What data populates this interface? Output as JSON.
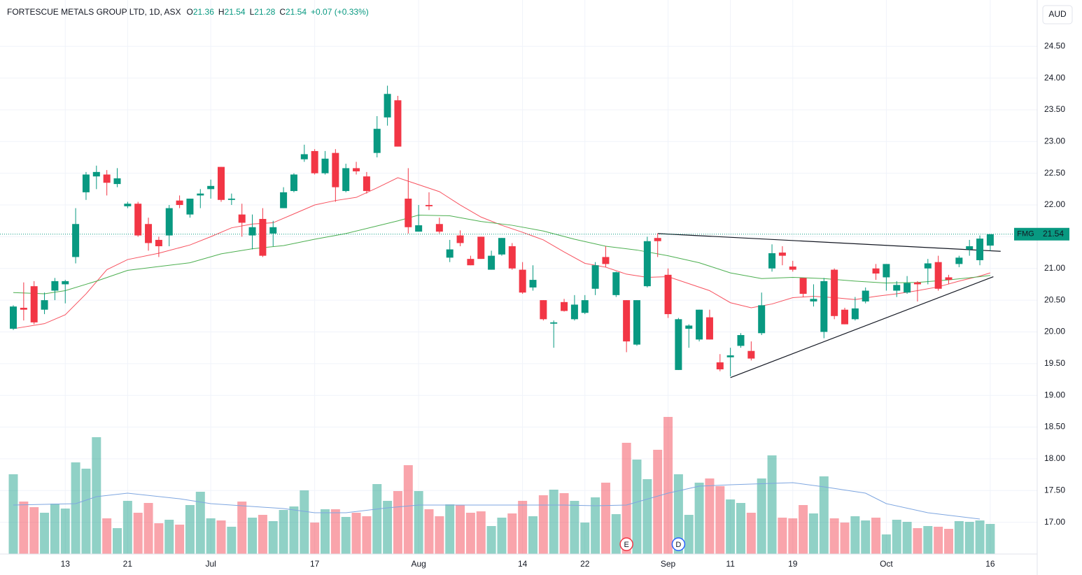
{
  "chart_data": {
    "type": "candlestick",
    "header": {
      "title": "FORTESCUE METALS GROUP LTD, 1D, ASX",
      "fields": [
        {
          "label": "O",
          "value": 21.36
        },
        {
          "label": "H",
          "value": 21.54
        },
        {
          "label": "L",
          "value": 21.28
        },
        {
          "label": "C",
          "value": 21.54
        }
      ],
      "change": "+0.07 (+0.33%)"
    },
    "currency": "AUD",
    "last": {
      "symbol": "FMG",
      "value": 21.54
    },
    "up_color": "#089981",
    "down_color": "#f23645",
    "categories": [
      null,
      null,
      null,
      null,
      null,
      "13",
      null,
      null,
      null,
      null,
      null,
      "21",
      null,
      null,
      null,
      null,
      null,
      null,
      null,
      "Jul",
      null,
      null,
      null,
      null,
      null,
      null,
      null,
      null,
      null,
      "17",
      null,
      null,
      null,
      null,
      null,
      null,
      null,
      null,
      null,
      "Aug",
      null,
      null,
      null,
      null,
      null,
      null,
      null,
      null,
      null,
      "14",
      null,
      null,
      null,
      null,
      null,
      "22",
      null,
      null,
      null,
      null,
      null,
      null,
      null,
      "Sep",
      null,
      null,
      null,
      null,
      null,
      "11",
      null,
      null,
      null,
      null,
      null,
      "19",
      null,
      null,
      null,
      null,
      null,
      null,
      null,
      null,
      "Oct",
      null,
      null,
      null,
      null,
      null,
      null,
      null,
      null,
      null,
      "16"
    ],
    "open": [
      20.05,
      20.38,
      20.72,
      20.35,
      20.65,
      20.75,
      21.18,
      22.2,
      22.45,
      22.48,
      22.33,
      21.98,
      22.02,
      21.7,
      21.45,
      21.52,
      22.07,
      21.85,
      22.15,
      22.25,
      22.6,
      22.08,
      21.85,
      21.52,
      21.78,
      21.55,
      21.95,
      22.22,
      22.72,
      22.85,
      22.5,
      22.82,
      22.22,
      22.58,
      22.45,
      22.82,
      23.38,
      23.65,
      22.1,
      21.58,
      22.0,
      21.7,
      21.17,
      21.52,
      21.15,
      21.5,
      20.98,
      21.22,
      21.35,
      20.98,
      20.7,
      20.5,
      20.13,
      20.47,
      20.2,
      20.3,
      20.68,
      21.18,
      20.58,
      20.5,
      19.8,
      20.72,
      21.48,
      20.9,
      19.4,
      20.05,
      19.88,
      20.23,
      19.52,
      19.6,
      19.78,
      19.7,
      19.98,
      21.0,
      21.25,
      21.03,
      20.85,
      20.48,
      20.0,
      20.98,
      20.35,
      20.2,
      20.48,
      21.0,
      20.86,
      20.65,
      20.62,
      20.78,
      21.0,
      21.1,
      20.86,
      21.07,
      21.3,
      21.13,
      21.36
    ],
    "high": [
      20.42,
      20.78,
      20.8,
      20.62,
      20.85,
      20.82,
      21.95,
      22.52,
      22.62,
      22.55,
      22.58,
      22.05,
      22.05,
      21.8,
      21.5,
      22.0,
      22.15,
      22.1,
      22.25,
      22.4,
      22.6,
      22.18,
      22.02,
      21.85,
      21.95,
      21.75,
      22.28,
      22.5,
      22.95,
      22.88,
      22.85,
      22.88,
      22.65,
      22.68,
      22.52,
      23.4,
      23.88,
      23.72,
      22.58,
      22.0,
      22.2,
      21.8,
      21.45,
      21.6,
      21.2,
      21.5,
      21.28,
      21.48,
      21.4,
      21.1,
      21.05,
      20.5,
      20.18,
      20.52,
      20.58,
      20.58,
      21.1,
      21.35,
      20.95,
      20.5,
      20.5,
      21.5,
      21.55,
      21.0,
      20.22,
      20.12,
      20.35,
      20.35,
      19.65,
      19.75,
      19.98,
      19.85,
      20.62,
      21.38,
      21.35,
      21.12,
      20.85,
      20.75,
      20.85,
      21.0,
      20.38,
      20.55,
      20.7,
      21.07,
      21.07,
      20.8,
      20.88,
      20.8,
      21.15,
      21.2,
      20.9,
      21.2,
      21.45,
      21.52,
      21.54
    ],
    "low": [
      20.03,
      20.18,
      20.12,
      20.28,
      20.5,
      20.45,
      21.08,
      22.08,
      22.25,
      22.15,
      22.28,
      21.95,
      21.5,
      21.28,
      21.18,
      21.35,
      21.95,
      21.8,
      21.95,
      22.1,
      22.05,
      22.0,
      21.5,
      21.3,
      21.18,
      21.35,
      21.95,
      22.2,
      22.68,
      22.48,
      22.48,
      22.05,
      22.2,
      22.48,
      22.18,
      22.75,
      23.25,
      22.92,
      21.55,
      21.58,
      21.92,
      21.55,
      21.1,
      21.35,
      21.05,
      21.15,
      20.98,
      21.2,
      20.98,
      20.6,
      20.65,
      20.18,
      19.75,
      20.32,
      20.18,
      20.28,
      20.58,
      21.02,
      20.55,
      19.68,
      19.78,
      20.7,
      21.18,
      20.22,
      19.4,
      19.75,
      19.85,
      19.88,
      19.38,
      19.3,
      19.75,
      19.55,
      19.95,
      20.95,
      21.05,
      20.95,
      20.55,
      20.4,
      19.9,
      20.2,
      20.12,
      20.18,
      20.45,
      20.82,
      20.65,
      20.55,
      20.6,
      20.48,
      20.75,
      20.65,
      20.75,
      21.02,
      21.2,
      21.05,
      21.28
    ],
    "close": [
      20.4,
      20.35,
      20.15,
      20.5,
      20.8,
      20.8,
      21.7,
      22.48,
      22.52,
      22.35,
      22.42,
      22.02,
      21.52,
      21.4,
      21.35,
      21.95,
      22.0,
      22.1,
      22.18,
      22.3,
      22.08,
      22.1,
      21.72,
      21.65,
      21.2,
      21.65,
      22.2,
      22.48,
      22.8,
      22.5,
      22.73,
      22.28,
      22.58,
      22.53,
      22.22,
      23.2,
      23.75,
      22.92,
      21.65,
      21.68,
      21.98,
      21.58,
      21.3,
      21.4,
      21.05,
      21.15,
      21.2,
      21.48,
      21.0,
      20.62,
      20.82,
      20.2,
      20.15,
      20.33,
      20.43,
      20.5,
      21.05,
      21.07,
      20.94,
      19.85,
      20.5,
      21.43,
      21.43,
      20.28,
      20.2,
      20.1,
      20.35,
      19.88,
      19.41,
      19.63,
      19.95,
      19.58,
      20.42,
      21.24,
      21.2,
      20.98,
      20.6,
      20.52,
      20.8,
      20.25,
      20.12,
      20.37,
      20.65,
      20.92,
      21.07,
      20.74,
      20.77,
      20.75,
      21.08,
      20.68,
      20.82,
      21.17,
      21.35,
      21.47,
      21.54
    ],
    "volume": [
      114,
      75,
      67,
      59,
      72,
      65,
      131,
      122,
      167,
      51,
      37,
      76,
      59,
      73,
      44,
      49,
      42,
      70,
      89,
      51,
      48,
      39,
      75,
      52,
      56,
      47,
      63,
      68,
      91,
      45,
      64,
      64,
      53,
      59,
      54,
      100,
      76,
      90,
      127,
      90,
      64,
      54,
      71,
      70,
      59,
      61,
      40,
      52,
      58,
      76,
      54,
      84,
      92,
      87,
      76,
      45,
      81,
      102,
      57,
      159,
      135,
      107,
      149,
      196,
      114,
      56,
      102,
      108,
      97,
      78,
      73,
      59,
      108,
      141,
      52,
      51,
      70,
      58,
      111,
      51,
      45,
      54,
      48,
      52,
      28,
      49,
      46,
      37,
      40,
      39,
      36,
      47,
      46,
      48,
      43
    ],
    "moving_averages": [
      {
        "color": "#f7525f",
        "x": [
          0,
          3,
          5,
          7,
          9,
          11,
          14,
          17,
          19,
          21,
          23,
          25,
          27,
          29,
          31,
          33,
          35,
          37,
          39,
          41,
          43,
          45,
          47,
          49,
          51,
          53,
          55,
          57,
          59,
          61,
          63,
          65,
          67,
          69,
          71,
          73,
          75,
          77,
          79,
          81,
          83,
          85,
          87,
          89,
          91,
          93,
          94
        ],
        "values": [
          20.05,
          20.13,
          20.27,
          20.6,
          20.98,
          21.14,
          21.24,
          21.37,
          21.5,
          21.64,
          21.7,
          21.72,
          21.86,
          22.0,
          22.07,
          22.12,
          22.27,
          22.43,
          22.32,
          22.21,
          22.0,
          21.81,
          21.68,
          21.57,
          21.45,
          21.26,
          21.08,
          21.02,
          20.91,
          20.86,
          20.87,
          20.76,
          20.65,
          20.46,
          20.38,
          20.44,
          20.54,
          20.56,
          20.54,
          20.51,
          20.56,
          20.6,
          20.65,
          20.71,
          20.8,
          20.88,
          20.93
        ]
      },
      {
        "color": "#4caf50",
        "x": [
          0,
          3,
          5,
          8,
          11,
          14,
          17,
          20,
          23,
          26,
          29,
          32,
          35,
          37,
          39,
          42,
          45,
          48,
          51,
          54,
          57,
          60,
          63,
          66,
          69,
          72,
          75,
          78,
          81,
          84,
          87,
          90,
          93,
          94
        ],
        "values": [
          20.62,
          20.6,
          20.65,
          20.8,
          20.97,
          21.03,
          21.09,
          21.23,
          21.31,
          21.36,
          21.46,
          21.55,
          21.67,
          21.75,
          21.84,
          21.83,
          21.74,
          21.68,
          21.59,
          21.46,
          21.35,
          21.29,
          21.2,
          21.09,
          20.93,
          20.84,
          20.86,
          20.84,
          20.8,
          20.77,
          20.78,
          20.82,
          20.87,
          20.89
        ]
      }
    ],
    "volume_ma": {
      "color": "#7ea6e0",
      "x": [
        0,
        6,
        8,
        11,
        16,
        19,
        26,
        29,
        32,
        36,
        39,
        46,
        53,
        56,
        59,
        63,
        66,
        69,
        75,
        78,
        82,
        84,
        88,
        93
      ],
      "values": [
        70,
        72,
        82,
        87,
        79,
        72,
        65,
        59,
        59,
        66,
        70,
        70,
        70,
        69,
        70,
        87,
        97,
        99,
        102,
        96,
        87,
        72,
        59,
        50
      ]
    },
    "trendlines": [
      {
        "color": "#131722",
        "x": [
          62,
          95
        ],
        "values": [
          21.55,
          21.27
        ]
      },
      {
        "color": "#131722",
        "x": [
          69,
          94.3
        ],
        "values": [
          19.28,
          20.87
        ]
      }
    ],
    "events": [
      {
        "label": "E",
        "x": 59,
        "color": "#f23645"
      },
      {
        "label": "D",
        "x": 64,
        "color": "#2962ff"
      }
    ],
    "ylim": [
      16.5,
      25.23
    ],
    "yticks": [
      {
        "value": 24.5,
        "label": "24.50"
      },
      {
        "value": 24,
        "label": "24.00"
      },
      {
        "value": 23.5,
        "label": "23.50"
      },
      {
        "value": 23,
        "label": "23.00"
      },
      {
        "value": 22.5,
        "label": "22.50"
      },
      {
        "value": 22,
        "label": "22.00"
      },
      {
        "value": 21.5,
        "label": "21.50"
      },
      {
        "value": 21,
        "label": "21.00"
      },
      {
        "value": 20.5,
        "label": "20.50"
      },
      {
        "value": 20,
        "label": "20.00"
      },
      {
        "value": 19.5,
        "label": "19.50"
      },
      {
        "value": 19,
        "label": "19.00"
      },
      {
        "value": 18.5,
        "label": "18.50"
      },
      {
        "value": 18,
        "label": "18.00"
      },
      {
        "value": 17.5,
        "label": "17.50"
      },
      {
        "value": 17,
        "label": "17.00"
      }
    ],
    "grid": true
  }
}
